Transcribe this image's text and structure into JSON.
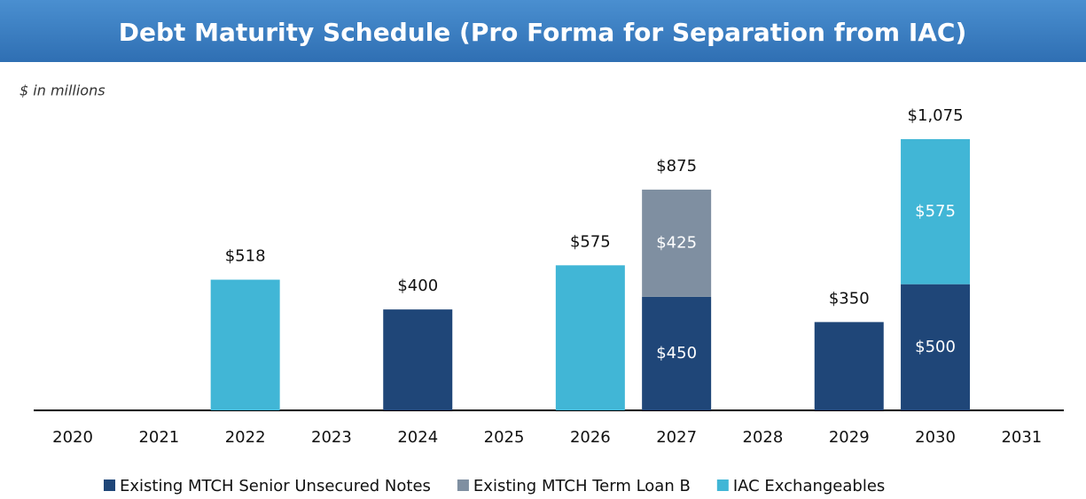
{
  "chart_data": {
    "type": "stacked-bar",
    "title": "Debt Maturity Schedule (Pro Forma for Separation from IAC)",
    "subtitle": "$ in millions",
    "categories": [
      "2020",
      "2021",
      "2022",
      "2023",
      "2024",
      "2025",
      "2026",
      "2027",
      "2028",
      "2029",
      "2030",
      "2031"
    ],
    "series": [
      {
        "name": "Existing MTCH Senior Unsecured Notes",
        "color": "#1f4678",
        "values": [
          null,
          null,
          null,
          null,
          400,
          null,
          null,
          450,
          null,
          350,
          500,
          null
        ],
        "value_labels": [
          null,
          null,
          null,
          null,
          null,
          null,
          null,
          "$450",
          null,
          null,
          "$500",
          null
        ]
      },
      {
        "name": "Existing MTCH Term Loan B",
        "color": "#7f8fa1",
        "values": [
          null,
          null,
          null,
          null,
          null,
          null,
          null,
          425,
          null,
          null,
          null,
          null
        ],
        "value_labels": [
          null,
          null,
          null,
          null,
          null,
          null,
          null,
          "$425",
          null,
          null,
          null,
          null
        ]
      },
      {
        "name": "IAC Exchangeables",
        "color": "#41b6d6",
        "values": [
          null,
          null,
          518,
          null,
          null,
          null,
          575,
          null,
          null,
          null,
          575,
          null
        ],
        "value_labels": [
          null,
          null,
          null,
          null,
          null,
          null,
          null,
          null,
          null,
          null,
          "$575",
          null
        ]
      }
    ],
    "totals": [
      null,
      null,
      518,
      null,
      400,
      null,
      575,
      875,
      null,
      350,
      1075,
      null
    ],
    "total_labels": [
      null,
      null,
      "$518",
      null,
      "$400",
      null,
      "$575",
      "$875",
      null,
      "$350",
      "$1,075",
      null
    ]
  }
}
